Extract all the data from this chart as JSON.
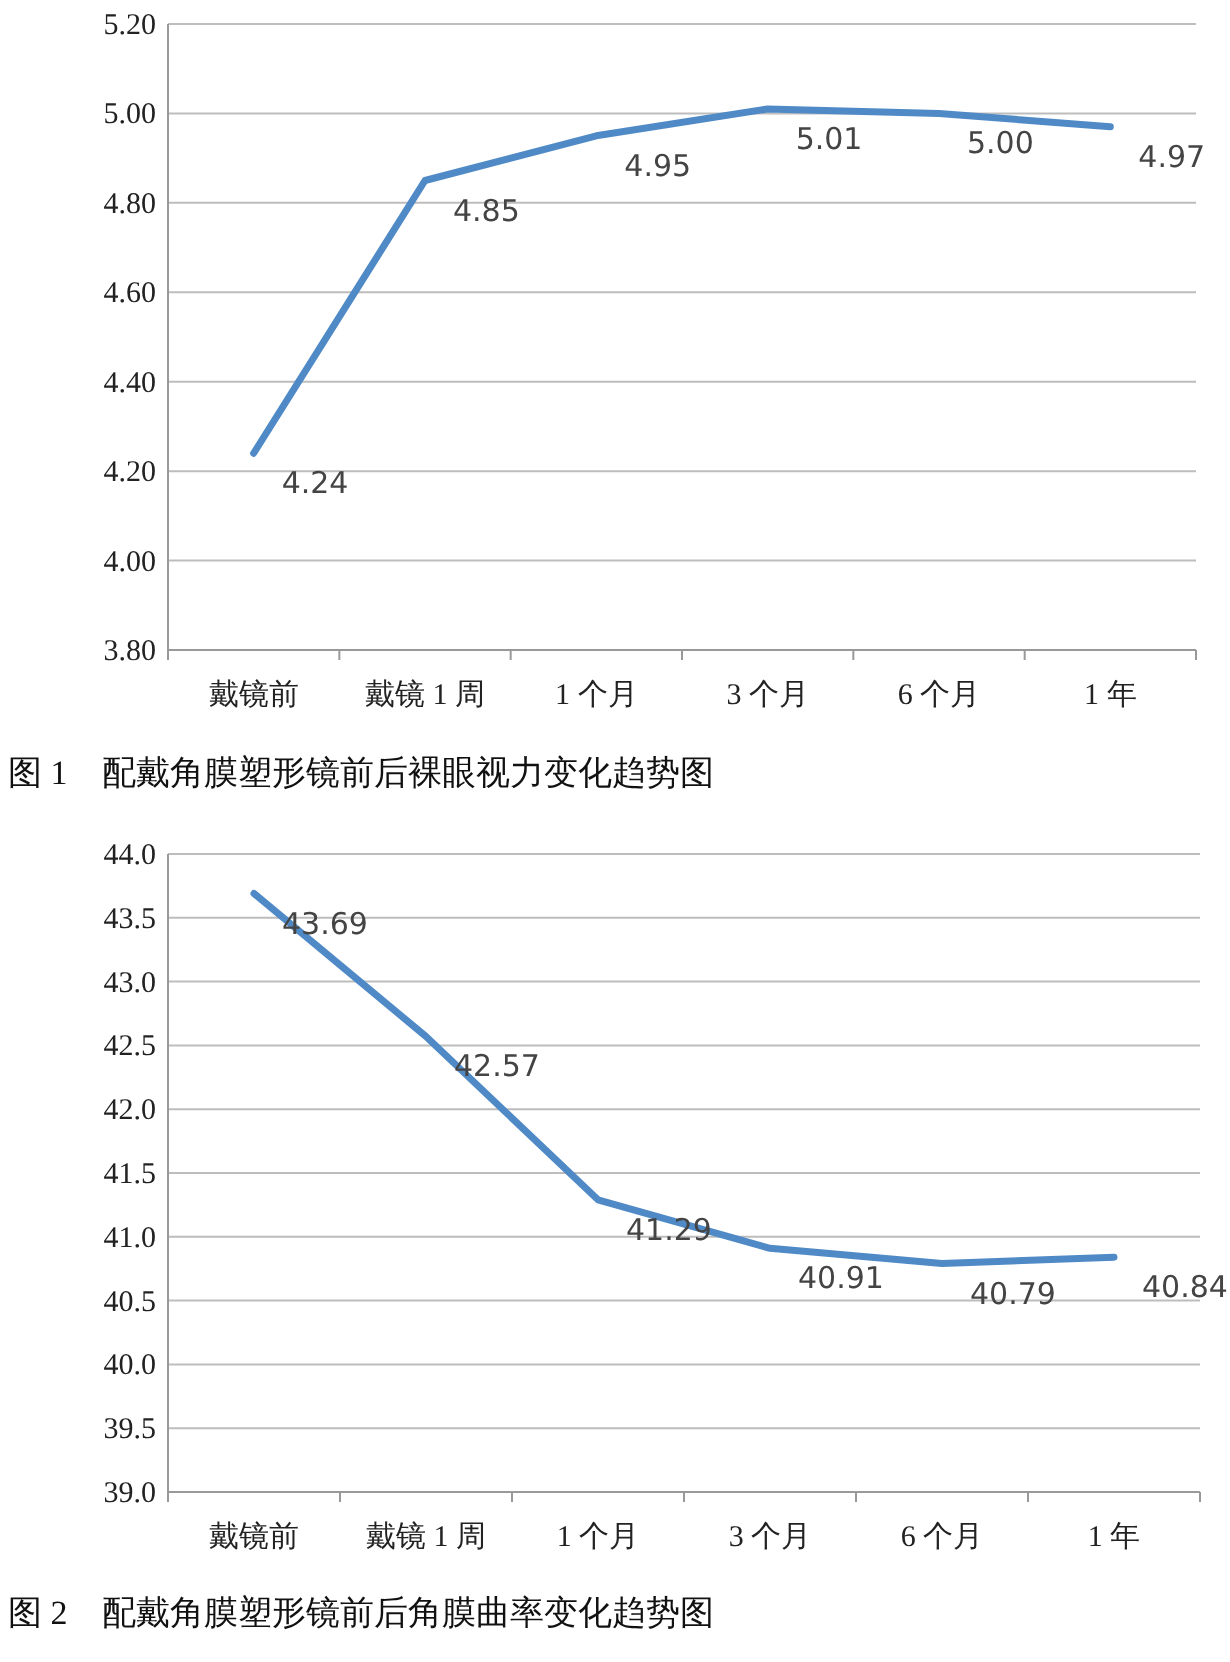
{
  "chart_data": [
    {
      "type": "line",
      "title": "图 1　配戴角膜塑形镜前后裸眼视力变化趋势图",
      "categories": [
        "戴镜前",
        "戴镜 1 周",
        "1 个月",
        "3 个月",
        "6 个月",
        "1 年"
      ],
      "series": [
        {
          "color": "#4f8ac6",
          "values": [
            4.24,
            4.85,
            4.95,
            5.01,
            5.0,
            4.97
          ]
        }
      ],
      "ylim": [
        3.8,
        5.2
      ],
      "yticks": [
        {
          "value": 3.8,
          "label": "3.80"
        },
        {
          "value": 4.0,
          "label": "4.00"
        },
        {
          "value": 4.2,
          "label": "4.20"
        },
        {
          "value": 4.4,
          "label": "4.40"
        },
        {
          "value": 4.6,
          "label": "4.60"
        },
        {
          "value": 4.8,
          "label": "4.80"
        },
        {
          "value": 5.0,
          "label": "5.00"
        },
        {
          "value": 5.2,
          "label": "5.20"
        }
      ],
      "value_labels": [
        "4.24",
        "4.85",
        "4.95",
        "5.01",
        "5.00",
        "4.97"
      ],
      "grid": "y",
      "marker": "none",
      "line_style": "solid"
    },
    {
      "type": "line",
      "title": "图 2　配戴角膜塑形镜前后角膜曲率变化趋势图",
      "categories": [
        "戴镜前",
        "戴镜 1 周",
        "1 个月",
        "3 个月",
        "6 个月",
        "1 年"
      ],
      "series": [
        {
          "color": "#4f8ac6",
          "values": [
            43.69,
            42.57,
            41.29,
            40.91,
            40.79,
            40.84
          ]
        }
      ],
      "ylim": [
        39.0,
        44.0
      ],
      "yticks": [
        {
          "value": 39,
          "label": "39.0"
        },
        {
          "value": 39.5,
          "label": "39.5"
        },
        {
          "value": 40,
          "label": "40.0"
        },
        {
          "value": 40.5,
          "label": "40.5"
        },
        {
          "value": 41,
          "label": "41.0"
        },
        {
          "value": 41.5,
          "label": "41.5"
        },
        {
          "value": 42,
          "label": "42.0"
        },
        {
          "value": 42.5,
          "label": "42.5"
        },
        {
          "value": 43,
          "label": "43.0"
        },
        {
          "value": 43.5,
          "label": "43.5"
        },
        {
          "value": 44,
          "label": "44.0"
        }
      ],
      "data_labels": true,
      "grid": "y",
      "marker": "none",
      "line_style": "solid"
    }
  ]
}
